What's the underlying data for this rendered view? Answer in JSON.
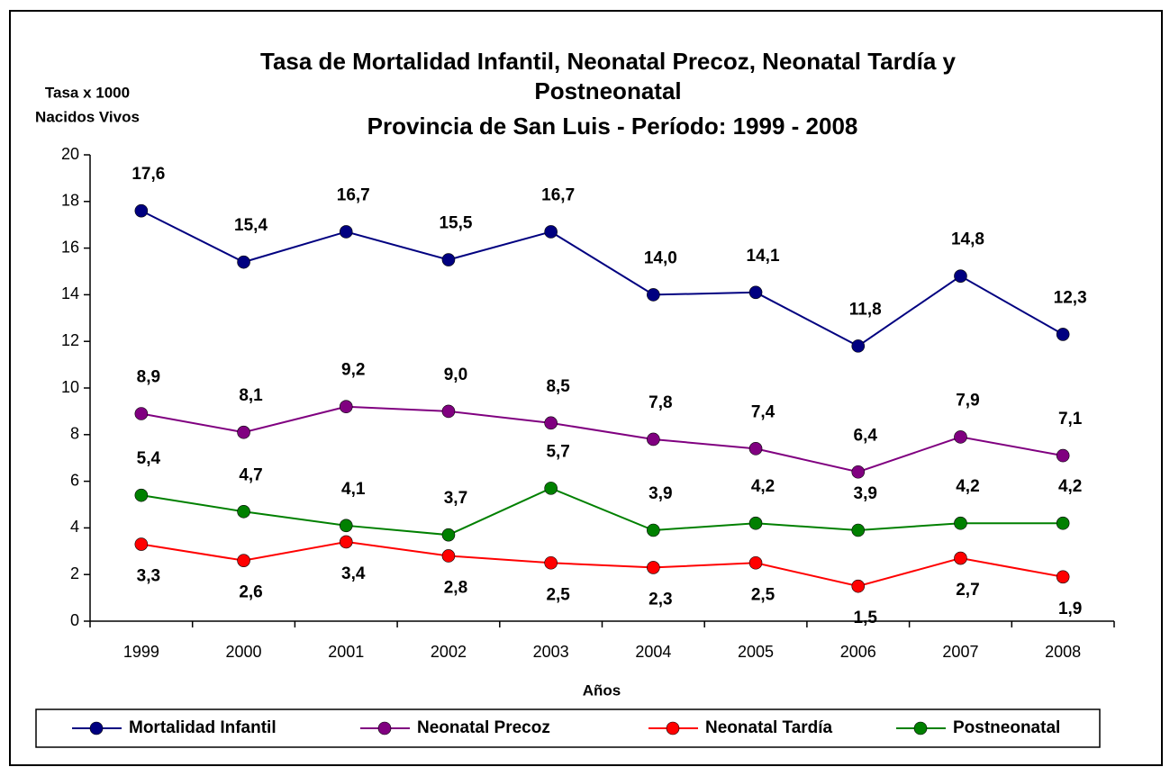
{
  "chart_data": {
    "type": "line",
    "title": [
      "Tasa de Mortalidad Infantil, Neonatal Precoz, Neonatal Tardía y",
      "Postneonatal"
    ],
    "subtitle": "Provincia de San Luis - Período: 1999 - 2008",
    "y_label": [
      "Tasa x 1000",
      "Nacidos Vivos"
    ],
    "x_label": "Años",
    "categories": [
      "1999",
      "2000",
      "2001",
      "2002",
      "2003",
      "2004",
      "2005",
      "2006",
      "2007",
      "2008"
    ],
    "series": [
      {
        "name": "Mortalidad Infantil",
        "color": "#000080",
        "label_position": "above",
        "values": [
          17.6,
          15.4,
          16.7,
          15.5,
          16.7,
          14.0,
          14.1,
          11.8,
          14.8,
          12.3
        ],
        "value_labels": [
          "17,6",
          "15,4",
          "16,7",
          "15,5",
          "16,7",
          "14,0",
          "14,1",
          "11,8",
          "14,8",
          "12,3"
        ]
      },
      {
        "name": "Neonatal Precoz",
        "color": "#800080",
        "label_position": "above",
        "values": [
          8.9,
          8.1,
          9.2,
          9.0,
          8.5,
          7.8,
          7.4,
          6.4,
          7.9,
          7.1
        ],
        "value_labels": [
          "8,9",
          "8,1",
          "9,2",
          "9,0",
          "8,5",
          "7,8",
          "7,4",
          "6,4",
          "7,9",
          "7,1"
        ]
      },
      {
        "name": "Neonatal Tardía",
        "color": "#ff0000",
        "label_position": "below",
        "values": [
          3.3,
          2.6,
          3.4,
          2.8,
          2.5,
          2.3,
          2.5,
          1.5,
          2.7,
          1.9
        ],
        "value_labels": [
          "3,3",
          "2,6",
          "3,4",
          "2,8",
          "2,5",
          "2,3",
          "2,5",
          "1,5",
          "2,7",
          "1,9"
        ]
      },
      {
        "name": "Postneonatal",
        "color": "#008000",
        "label_position": "above",
        "values": [
          5.4,
          4.7,
          4.1,
          3.7,
          5.7,
          3.9,
          4.2,
          3.9,
          4.2,
          4.2
        ],
        "value_labels": [
          "5,4",
          "4,7",
          "4,1",
          "3,7",
          "5,7",
          "3,9",
          "4,2",
          "3,9",
          "4,2",
          "4,2"
        ]
      }
    ],
    "ylim": [
      0,
      20
    ],
    "yticks": [
      0,
      2,
      4,
      6,
      8,
      10,
      12,
      14,
      16,
      18,
      20
    ],
    "grid": false,
    "legend": "bottom"
  }
}
